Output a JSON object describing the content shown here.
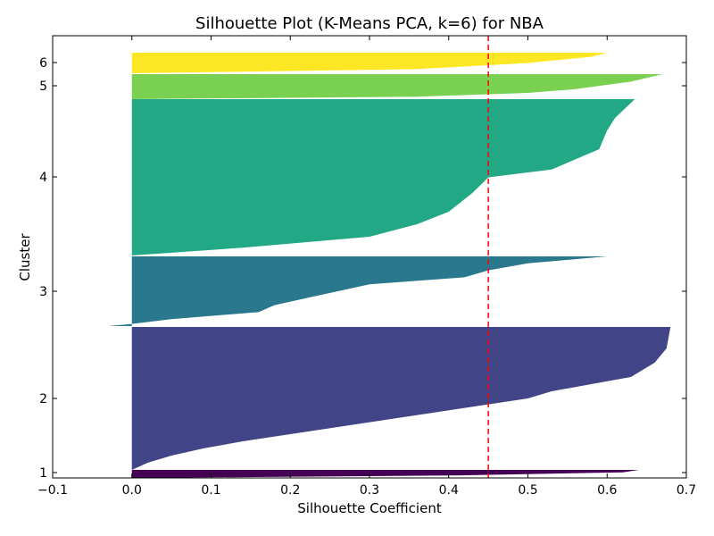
{
  "chart_data": {
    "type": "area",
    "title": "Silhouette Plot (K-Means PCA, k=6) for NBA",
    "xlabel": "Silhouette Coefficient",
    "ylabel": "Cluster",
    "xlim": [
      -0.1,
      0.7
    ],
    "x_ticks": [
      "−0.1",
      "0.0",
      "0.1",
      "0.2",
      "0.3",
      "0.4",
      "0.5",
      "0.6",
      "0.7"
    ],
    "x_tick_values": [
      -0.1,
      0.0,
      0.1,
      0.2,
      0.3,
      0.4,
      0.5,
      0.6,
      0.7
    ],
    "y_ticks": [
      "1",
      "2",
      "3",
      "4",
      "5",
      "6"
    ],
    "grid": false,
    "average_silhouette": 0.45,
    "reference_line_color": "#ff0000",
    "clusters": [
      {
        "label": "1",
        "color": "#440154",
        "max": 0.64,
        "min": 0.0,
        "profile": [
          [
            0,
            0.64
          ],
          [
            0.3,
            0.62
          ],
          [
            0.7,
            0.4
          ],
          [
            1,
            0.0
          ]
        ]
      },
      {
        "label": "2",
        "color": "#414487",
        "max": 0.68,
        "min": 0.0,
        "profile": [
          [
            0,
            0.68
          ],
          [
            0.15,
            0.675
          ],
          [
            0.25,
            0.66
          ],
          [
            0.35,
            0.63
          ],
          [
            0.4,
            0.58
          ],
          [
            0.45,
            0.53
          ],
          [
            0.5,
            0.5
          ],
          [
            0.55,
            0.44
          ],
          [
            0.6,
            0.38
          ],
          [
            0.65,
            0.32
          ],
          [
            0.7,
            0.26
          ],
          [
            0.75,
            0.2
          ],
          [
            0.8,
            0.14
          ],
          [
            0.85,
            0.09
          ],
          [
            0.9,
            0.05
          ],
          [
            0.95,
            0.02
          ],
          [
            1,
            0.0
          ]
        ]
      },
      {
        "label": "3",
        "color": "#2a788e",
        "max": 0.6,
        "min": -0.03,
        "profile": [
          [
            0,
            0.6
          ],
          [
            0.1,
            0.5
          ],
          [
            0.2,
            0.45
          ],
          [
            0.3,
            0.42
          ],
          [
            0.4,
            0.3
          ],
          [
            0.5,
            0.26
          ],
          [
            0.55,
            0.24
          ],
          [
            0.6,
            0.22
          ],
          [
            0.7,
            0.18
          ],
          [
            0.8,
            0.16
          ],
          [
            0.9,
            0.05
          ],
          [
            0.97,
            0.0
          ],
          [
            1,
            -0.03
          ]
        ]
      },
      {
        "label": "4",
        "color": "#22a884",
        "max": 0.64,
        "min": 0.0,
        "profile": [
          [
            0,
            0.635
          ],
          [
            0.12,
            0.61
          ],
          [
            0.2,
            0.6
          ],
          [
            0.32,
            0.59
          ],
          [
            0.45,
            0.53
          ],
          [
            0.5,
            0.45
          ],
          [
            0.6,
            0.43
          ],
          [
            0.72,
            0.4
          ],
          [
            0.8,
            0.36
          ],
          [
            0.88,
            0.3
          ],
          [
            0.95,
            0.14
          ],
          [
            1,
            0.0
          ]
        ]
      },
      {
        "label": "5",
        "color": "#7ad151",
        "max": 0.67,
        "min": 0.0,
        "profile": [
          [
            0,
            0.67
          ],
          [
            0.3,
            0.63
          ],
          [
            0.6,
            0.56
          ],
          [
            0.75,
            0.5
          ],
          [
            0.9,
            0.36
          ],
          [
            1,
            0.0
          ]
        ]
      },
      {
        "label": "6",
        "color": "#fde725",
        "max": 0.6,
        "min": 0.0,
        "profile": [
          [
            0,
            0.6
          ],
          [
            0.2,
            0.58
          ],
          [
            0.5,
            0.5
          ],
          [
            0.8,
            0.36
          ],
          [
            1,
            0.0
          ]
        ]
      }
    ]
  }
}
